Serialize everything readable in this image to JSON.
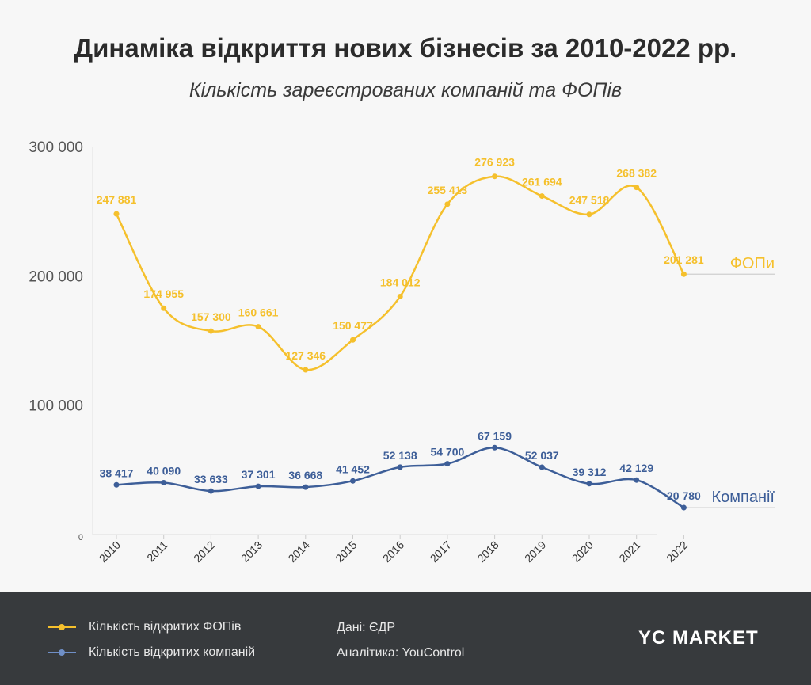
{
  "title": "Динаміка відкриття нових бізнесів за 2010-2022 рр.",
  "subtitle": "Кількість зареєстрованих компаній та ФОПів",
  "chart_data": {
    "type": "line",
    "x": [
      "2010",
      "2011",
      "2012",
      "2013",
      "2014",
      "2015",
      "2016",
      "2017",
      "2018",
      "2019",
      "2020",
      "2021",
      "2022"
    ],
    "ylim": [
      0,
      300000
    ],
    "yticks": [
      0,
      100000,
      200000,
      300000
    ],
    "ytick_labels": [
      "0",
      "100 000",
      "200 000",
      "300 000"
    ],
    "grid": false,
    "series": [
      {
        "name": "ФОПи",
        "legend": "Кількість відкритих ФОПів",
        "color": "#f5c02c",
        "values": [
          247881,
          174955,
          157300,
          160661,
          127346,
          150477,
          184012,
          255413,
          276923,
          261694,
          247518,
          268382,
          201281
        ],
        "labels": [
          "247 881",
          "174 955",
          "157 300",
          "160 661",
          "127 346",
          "150 477",
          "184 012",
          "255 413",
          "276 923",
          "261 694",
          "247 518",
          "268 382",
          "201 281"
        ]
      },
      {
        "name": "Компанії",
        "legend": "Кількість відкритих компаній",
        "color": "#3d5e98",
        "values": [
          38417,
          40090,
          33633,
          37301,
          36668,
          41452,
          52138,
          54700,
          67159,
          52037,
          39312,
          42129,
          20780
        ],
        "labels": [
          "38 417",
          "40 090",
          "33 633",
          "37 301",
          "36 668",
          "41 452",
          "52 138",
          "54 700",
          "67 159",
          "52 037",
          "39 312",
          "42 129",
          "20 780"
        ]
      }
    ]
  },
  "footer": {
    "legend_fop": "Кількість відкритих ФОПів",
    "legend_companies": "Кількість відкритих компаній",
    "source_data": "Дані: ЄДР",
    "source_analytics": "Аналітика: YouControl",
    "logo": "YC MARKET"
  }
}
